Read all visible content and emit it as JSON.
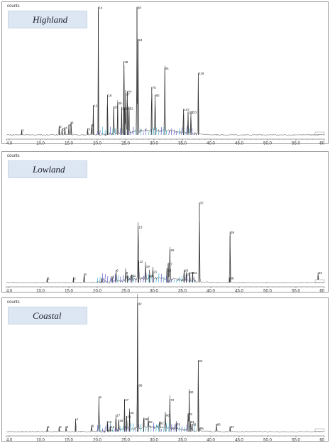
{
  "chart_data": [
    {
      "type": "line",
      "title": "Highland",
      "ylabel": "counts",
      "xlim": [
        4.0,
        60.0
      ],
      "xticks": [
        "4.0",
        "5.0",
        "10.0",
        "15.0",
        "20.0",
        "25.0",
        "30.0",
        "35.0",
        "40.0",
        "45.0",
        "50.0",
        "55.0",
        "60"
      ],
      "peaks": [
        {
          "label": "1",
          "x": 6.7,
          "y": 0.04
        },
        {
          "label": "2",
          "x": 13.3,
          "y": 0.07
        },
        {
          "label": "3",
          "x": 13.8,
          "y": 0.05
        },
        {
          "label": "4",
          "x": 14.3,
          "y": 0.06
        },
        {
          "label": "5",
          "x": 15.0,
          "y": 0.08
        },
        {
          "label": "6",
          "x": 15.4,
          "y": 0.1
        },
        {
          "label": "8",
          "x": 19.0,
          "y": 0.08
        },
        {
          "label": "9",
          "x": 18.3,
          "y": 0.05
        },
        {
          "label": "12",
          "x": 19.3,
          "y": 0.23
        },
        {
          "label": "14",
          "x": 20.2,
          "y": 0.99
        },
        {
          "label": "18",
          "x": 21.8,
          "y": 0.31
        },
        {
          "label": "20",
          "x": 22.9,
          "y": 0.22
        },
        {
          "label": "25",
          "x": 23.6,
          "y": 0.25
        },
        {
          "label": "28",
          "x": 24.3,
          "y": 0.21
        },
        {
          "label": "33",
          "x": 24.8,
          "y": 0.21
        },
        {
          "label": "37",
          "x": 25.0,
          "y": 0.32
        },
        {
          "label": "38",
          "x": 24.7,
          "y": 0.57
        },
        {
          "label": "44",
          "x": 25.3,
          "y": 0.34
        },
        {
          "label": "52",
          "x": 25.6,
          "y": 0.21
        },
        {
          "label": "54",
          "x": 27.2,
          "y": 0.74
        },
        {
          "label": "58",
          "x": 27.0,
          "y": 0.99
        },
        {
          "label": "75",
          "x": 29.6,
          "y": 0.37
        },
        {
          "label": "80",
          "x": 30.2,
          "y": 0.31
        },
        {
          "label": "91",
          "x": 31.9,
          "y": 0.52
        },
        {
          "label": "107",
          "x": 35.2,
          "y": 0.2
        },
        {
          "label": "112",
          "x": 36.0,
          "y": 0.18
        },
        {
          "label": "113",
          "x": 36.5,
          "y": 0.18
        },
        {
          "label": "118",
          "x": 37.8,
          "y": 0.48
        }
      ]
    },
    {
      "type": "line",
      "title": "Lowland",
      "ylabel": "counts",
      "xlim": [
        4.0,
        60.0
      ],
      "xticks": [
        "4.0",
        "5.0",
        "10.0",
        "15.0",
        "20.0",
        "25.0",
        "30.0",
        "35.0",
        "40.0",
        "45.0",
        "50.0",
        "55.0",
        "60"
      ],
      "peaks": [
        {
          "label": "1",
          "x": 11.2,
          "y": 0.04
        },
        {
          "label": "2",
          "x": 15.8,
          "y": 0.04
        },
        {
          "label": "3",
          "x": 17.7,
          "y": 0.07
        },
        {
          "label": "4",
          "x": 20.8,
          "y": 0.03
        },
        {
          "label": "5",
          "x": 22.6,
          "y": 0.05
        },
        {
          "label": "6",
          "x": 23.3,
          "y": 0.1
        },
        {
          "label": "9",
          "x": 25.0,
          "y": 0.08
        },
        {
          "label": "10",
          "x": 25.3,
          "y": 0.05
        },
        {
          "label": "11",
          "x": 26.1,
          "y": 0.06
        },
        {
          "label": "12",
          "x": 27.3,
          "y": 0.17
        },
        {
          "label": "13",
          "x": 27.2,
          "y": 0.44
        },
        {
          "label": "19",
          "x": 28.5,
          "y": 0.13
        },
        {
          "label": "20",
          "x": 29.2,
          "y": 0.06
        },
        {
          "label": "21",
          "x": 29.8,
          "y": 0.09
        },
        {
          "label": "23",
          "x": 32.3,
          "y": 0.1
        },
        {
          "label": "26",
          "x": 32.8,
          "y": 0.26
        },
        {
          "label": "27",
          "x": 32.5,
          "y": 0.15
        },
        {
          "label": "29",
          "x": 35.3,
          "y": 0.1
        },
        {
          "label": "32",
          "x": 35.7,
          "y": 0.07
        },
        {
          "label": "33",
          "x": 36.3,
          "y": 0.08
        },
        {
          "label": "34",
          "x": 36.8,
          "y": 0.08
        },
        {
          "label": "37",
          "x": 38.0,
          "y": 0.63
        },
        {
          "label": "38",
          "x": 43.3,
          "y": 0.04
        },
        {
          "label": "39",
          "x": 43.4,
          "y": 0.4
        },
        {
          "label": "40",
          "x": 58.9,
          "y": 0.08
        }
      ]
    },
    {
      "type": "line",
      "title": "Coastal",
      "ylabel": "counts",
      "xlim": [
        4.0,
        60.0
      ],
      "xticks": [
        "4.0",
        "5.0",
        "10.0",
        "15.0",
        "20.0",
        "25.0",
        "30.0",
        "35.0",
        "40.0",
        "45.0",
        "50.0",
        "55.0",
        "60"
      ],
      "peaks": [
        {
          "label": "1",
          "x": 11.2,
          "y": 0.04
        },
        {
          "label": "2",
          "x": 13.3,
          "y": 0.04
        },
        {
          "label": "3",
          "x": 14.5,
          "y": 0.04
        },
        {
          "label": "4",
          "x": 16.2,
          "y": 0.1
        },
        {
          "label": "6",
          "x": 19.0,
          "y": 0.05
        },
        {
          "label": "8",
          "x": 20.3,
          "y": 0.27
        },
        {
          "label": "10",
          "x": 21.8,
          "y": 0.08
        },
        {
          "label": "13",
          "x": 22.3,
          "y": 0.04
        },
        {
          "label": "17",
          "x": 23.3,
          "y": 0.13
        },
        {
          "label": "18",
          "x": 23.8,
          "y": 0.09
        },
        {
          "label": "27",
          "x": 24.8,
          "y": 0.25
        },
        {
          "label": "29",
          "x": 25.2,
          "y": 0.12
        },
        {
          "label": "33",
          "x": 25.7,
          "y": 0.15
        },
        {
          "label": "38",
          "x": 27.2,
          "y": 0.36
        },
        {
          "label": "42",
          "x": 27.1,
          "y": 0.99
        },
        {
          "label": "48",
          "x": 28.2,
          "y": 0.1
        },
        {
          "label": "52",
          "x": 29.0,
          "y": 0.08
        },
        {
          "label": "62",
          "x": 31.0,
          "y": 0.07
        },
        {
          "label": "66",
          "x": 32.0,
          "y": 0.13
        },
        {
          "label": "72",
          "x": 32.8,
          "y": 0.25
        },
        {
          "label": "76",
          "x": 33.9,
          "y": 0.06
        },
        {
          "label": "79",
          "x": 36.0,
          "y": 0.14
        },
        {
          "label": "80",
          "x": 36.2,
          "y": 0.31
        },
        {
          "label": "81",
          "x": 36.4,
          "y": 0.08
        },
        {
          "label": "83",
          "x": 36.7,
          "y": 0.06
        },
        {
          "label": "84",
          "x": 37.8,
          "y": 0.55
        },
        {
          "label": "85",
          "x": 38.0,
          "y": 0.03
        },
        {
          "label": "86",
          "x": 41.0,
          "y": 0.06
        },
        {
          "label": "87",
          "x": 43.4,
          "y": 0.04
        }
      ]
    }
  ],
  "icons": {
    "scale_marker": "scale-marker-icon"
  }
}
